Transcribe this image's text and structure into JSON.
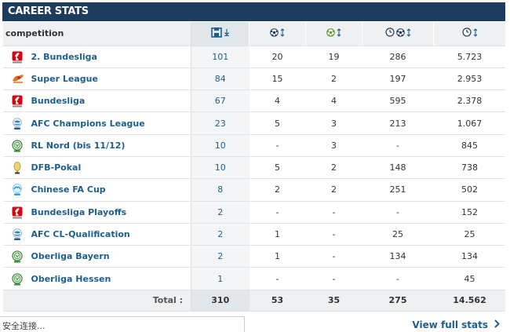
{
  "header": {
    "title": "CAREER STATS"
  },
  "table": {
    "competition_header": "competition",
    "column_icons": [
      "appearances-icon",
      "goals-icon",
      "assists-icon",
      "minutes-per-goal-icon",
      "minutes-played-icon"
    ],
    "rows": [
      {
        "logo": "bundesliga-2-logo",
        "name": "2. Bundesliga",
        "apps": "101",
        "goals": "20",
        "assists": "19",
        "min_per_goal": "286",
        "minutes": "5.723"
      },
      {
        "logo": "super-league-logo",
        "name": "Super League",
        "apps": "84",
        "goals": "15",
        "assists": "2",
        "min_per_goal": "197",
        "minutes": "2.953"
      },
      {
        "logo": "bundesliga-logo",
        "name": "Bundesliga",
        "apps": "67",
        "goals": "4",
        "assists": "4",
        "min_per_goal": "595",
        "minutes": "2.378"
      },
      {
        "logo": "afc-champions-league-logo",
        "name": "AFC Champions League",
        "apps": "23",
        "goals": "5",
        "assists": "3",
        "min_per_goal": "213",
        "minutes": "1.067"
      },
      {
        "logo": "dfb-regional-logo",
        "name": "RL Nord (bis 11/12)",
        "apps": "10",
        "goals": "-",
        "assists": "3",
        "min_per_goal": "-",
        "minutes": "845"
      },
      {
        "logo": "dfb-pokal-logo",
        "name": "DFB-Pokal",
        "apps": "10",
        "goals": "5",
        "assists": "2",
        "min_per_goal": "148",
        "minutes": "738"
      },
      {
        "logo": "chinese-fa-cup-logo",
        "name": "Chinese FA Cup",
        "apps": "8",
        "goals": "2",
        "assists": "2",
        "min_per_goal": "251",
        "minutes": "502"
      },
      {
        "logo": "bundesliga-logo",
        "name": "Bundesliga Playoffs",
        "apps": "2",
        "goals": "-",
        "assists": "-",
        "min_per_goal": "-",
        "minutes": "152"
      },
      {
        "logo": "afc-champions-league-logo",
        "name": "AFC CL-Qualification",
        "apps": "2",
        "goals": "1",
        "assists": "-",
        "min_per_goal": "25",
        "minutes": "25"
      },
      {
        "logo": "dfb-regional-logo",
        "name": "Oberliga Bayern",
        "apps": "2",
        "goals": "1",
        "assists": "-",
        "min_per_goal": "134",
        "minutes": "134"
      },
      {
        "logo": "dfb-regional-logo",
        "name": "Oberliga Hessen",
        "apps": "1",
        "goals": "-",
        "assists": "-",
        "min_per_goal": "-",
        "minutes": "45"
      }
    ],
    "total": {
      "label": "Total :",
      "apps": "310",
      "goals": "53",
      "assists": "35",
      "min_per_goal": "275",
      "minutes": "14.562"
    }
  },
  "footer": {
    "status_text": "安全连接...",
    "view_full_label": "View full stats",
    "view_full_icon": "chevron-right-icon"
  },
  "colors": {
    "header_bg": "#1d3d5e",
    "link": "#1d5f8c",
    "row_border": "#dfe3e6",
    "head_bg": "#eef0f2"
  }
}
